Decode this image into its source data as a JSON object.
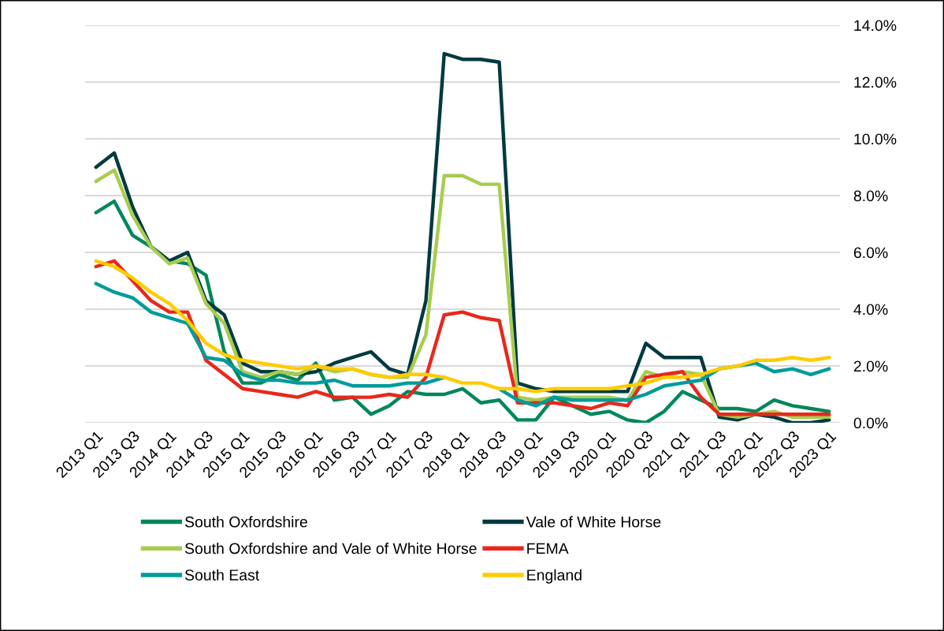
{
  "chart_data": {
    "type": "line",
    "categories": [
      "2013 Q1",
      null,
      "2013 Q3",
      null,
      "2014 Q1",
      null,
      "2014 Q3",
      null,
      "2015 Q1",
      null,
      "2015 Q3",
      null,
      "2016 Q1",
      null,
      "2016 Q3",
      null,
      "2017 Q1",
      null,
      "2017 Q3",
      null,
      "2018 Q1",
      null,
      "2018 Q3",
      null,
      "2019 Q1",
      null,
      "2019 Q3",
      null,
      "2020 Q1",
      null,
      "2020 Q3",
      null,
      "2021 Q1",
      null,
      "2021 Q3",
      null,
      "2022 Q1",
      null,
      "2022 Q3",
      null,
      "2023 Q1"
    ],
    "series": [
      {
        "name": "South Oxfordshire",
        "color": "#00875a",
        "values": [
          7.4,
          7.8,
          6.6,
          6.2,
          5.7,
          5.6,
          5.2,
          2.5,
          1.4,
          1.4,
          1.7,
          1.5,
          2.1,
          0.8,
          0.9,
          0.3,
          0.6,
          1.1,
          1.0,
          1.0,
          1.2,
          0.7,
          0.8,
          0.1,
          0.1,
          0.9,
          0.6,
          0.3,
          0.4,
          0.1,
          0.0,
          0.4,
          1.1,
          0.8,
          0.5,
          0.5,
          0.4,
          0.8,
          0.6,
          0.5,
          0.4
        ]
      },
      {
        "name": "Vale of White Horse",
        "color": "#003a40",
        "values": [
          9.0,
          9.5,
          7.6,
          6.2,
          5.7,
          6.0,
          4.3,
          3.8,
          2.1,
          1.8,
          1.8,
          1.7,
          1.8,
          2.1,
          2.3,
          2.5,
          1.9,
          1.7,
          4.3,
          13.0,
          12.8,
          12.8,
          12.7,
          1.4,
          1.2,
          1.1,
          1.1,
          1.1,
          1.1,
          1.1,
          2.8,
          2.3,
          2.3,
          2.3,
          0.2,
          0.1,
          0.3,
          0.2,
          0.0,
          0.0,
          0.1
        ]
      },
      {
        "name": "South Oxfordshire and Vale of White Horse",
        "color": "#a8cc50",
        "values": [
          8.5,
          8.9,
          7.3,
          6.2,
          5.6,
          5.8,
          4.2,
          3.5,
          1.8,
          1.6,
          1.8,
          1.7,
          2.0,
          1.8,
          1.9,
          1.7,
          1.6,
          1.6,
          3.1,
          8.7,
          8.7,
          8.4,
          8.4,
          0.9,
          0.8,
          0.9,
          0.9,
          0.9,
          0.9,
          0.8,
          1.8,
          1.6,
          1.8,
          1.7,
          0.3,
          0.2,
          0.3,
          0.4,
          0.2,
          0.2,
          0.2
        ]
      },
      {
        "name": "FEMA",
        "color": "#e8281b",
        "values": [
          5.5,
          5.7,
          5.0,
          4.3,
          3.9,
          3.9,
          2.2,
          1.7,
          1.2,
          1.1,
          1.0,
          0.9,
          1.1,
          0.9,
          0.9,
          0.9,
          1.0,
          0.9,
          1.6,
          3.8,
          3.9,
          3.7,
          3.6,
          0.7,
          0.7,
          0.7,
          0.6,
          0.5,
          0.7,
          0.6,
          1.6,
          1.7,
          1.8,
          0.9,
          0.3,
          0.3,
          0.3,
          0.3,
          0.3,
          0.3,
          0.3
        ]
      },
      {
        "name": "South East",
        "color": "#009b9b",
        "values": [
          4.9,
          4.6,
          4.4,
          3.9,
          3.7,
          3.5,
          2.3,
          2.2,
          1.7,
          1.5,
          1.5,
          1.4,
          1.4,
          1.5,
          1.3,
          1.3,
          1.3,
          1.4,
          1.4,
          1.6,
          null,
          null,
          1.2,
          0.8,
          0.6,
          0.9,
          0.8,
          0.8,
          0.8,
          0.8,
          1.0,
          1.3,
          1.4,
          1.5,
          1.9,
          2.0,
          2.1,
          1.8,
          1.9,
          1.7,
          1.9
        ]
      },
      {
        "name": "England",
        "color": "#ffcc00",
        "values": [
          5.7,
          5.5,
          5.1,
          4.6,
          4.2,
          3.6,
          2.8,
          2.4,
          2.2,
          2.1,
          2.0,
          1.9,
          2.0,
          1.9,
          1.9,
          1.7,
          1.6,
          1.7,
          1.7,
          1.6,
          1.4,
          1.4,
          1.2,
          1.2,
          1.1,
          1.2,
          1.2,
          1.2,
          1.2,
          1.3,
          1.4,
          1.6,
          1.6,
          1.7,
          1.9,
          2.0,
          2.2,
          2.2,
          2.3,
          2.2,
          2.3
        ]
      }
    ],
    "ylim": [
      0,
      14
    ],
    "yticks": [
      {
        "value": 0,
        "label": "0.0%"
      },
      {
        "value": 2,
        "label": "2.0%"
      },
      {
        "value": 4,
        "label": "4.0%"
      },
      {
        "value": 6,
        "label": "6.0%"
      },
      {
        "value": 8,
        "label": "8.0%"
      },
      {
        "value": 10,
        "label": "10.0%"
      },
      {
        "value": 12,
        "label": "12.0%"
      },
      {
        "value": 14,
        "label": "14.0%"
      }
    ],
    "grid": "y",
    "legend": "bottom",
    "marker": "none",
    "line_style": "solid"
  }
}
